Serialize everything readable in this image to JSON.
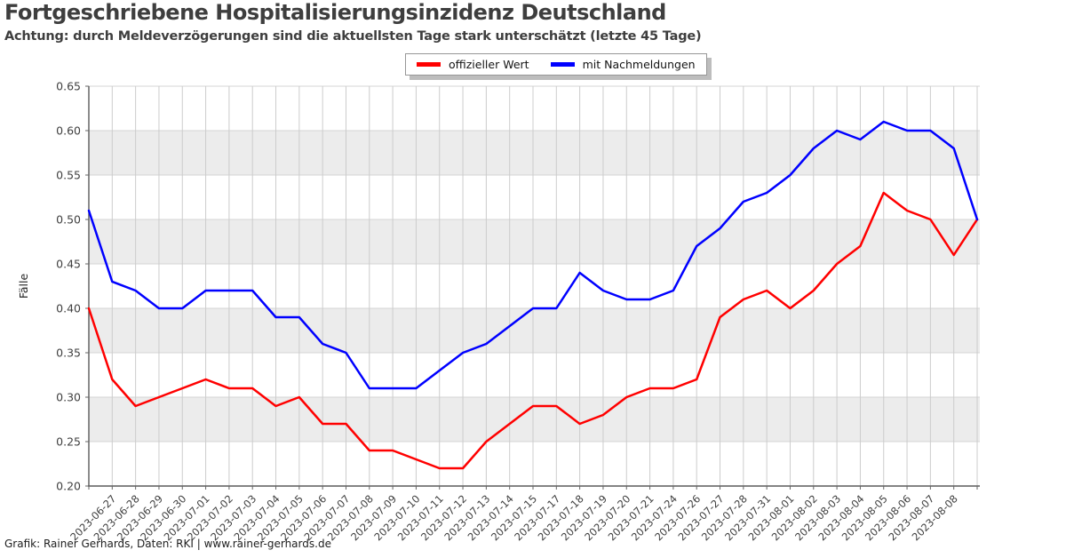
{
  "page": {
    "title": "Fortgeschriebene Hospitalisierungsinzidenz Deutschland",
    "subtitle": "Achtung: durch Meldeverzögerungen sind die aktuellsten Tage stark unterschätzt (letzte 45 Tage)",
    "footer": "Grafik: Rainer Gerhards, Daten: RKI | www.rainer-gerhards.de"
  },
  "legend": {
    "entries": [
      {
        "label": "offizieller Wert",
        "color": "#ff0000"
      },
      {
        "label": "mit Nachmeldungen",
        "color": "#0000ff"
      }
    ]
  },
  "chart_data": {
    "type": "line",
    "title": "Fortgeschriebene Hospitalisierungsinzidenz Deutschland",
    "xlabel": "",
    "ylabel": "Fälle",
    "ylim": [
      0.2,
      0.65
    ],
    "yticks": [
      "0.20",
      "0.25",
      "0.30",
      "0.35",
      "0.40",
      "0.45",
      "0.50",
      "0.55",
      "0.60",
      "0.65"
    ],
    "grid": true,
    "legend_position": "top-center",
    "band_color": "#ececec",
    "bands": [
      [
        0.25,
        0.3
      ],
      [
        0.35,
        0.4
      ],
      [
        0.45,
        0.5
      ],
      [
        0.55,
        0.6
      ]
    ],
    "x_labels": [
      "",
      "2023-06-27",
      "2023-06-28",
      "2023-06-29",
      "2023-06-30",
      "2023-07-01",
      "2023-07-02",
      "2023-07-03",
      "2023-07-04",
      "2023-07-05",
      "2023-07-06",
      "2023-07-07",
      "2023-07-08",
      "2023-07-09",
      "2023-07-10",
      "2023-07-11",
      "2023-07-12",
      "2023-07-13",
      "2023-07-14",
      "2023-07-15",
      "2023-07-17",
      "2023-07-18",
      "2023-07-19",
      "2023-07-20",
      "2023-07-21",
      "2023-07-24",
      "2023-07-26",
      "2023-07-27",
      "2023-07-28",
      "2023-07-31",
      "2023-08-01",
      "2023-08-02",
      "2023-08-03",
      "2023-08-04",
      "2023-08-05",
      "2023-08-06",
      "2023-08-07",
      "2023-08-08",
      ""
    ],
    "series": [
      {
        "name": "offizieller Wert",
        "color": "#ff0000",
        "values": [
          0.4,
          0.32,
          0.29,
          0.3,
          0.31,
          0.32,
          0.31,
          0.31,
          0.29,
          0.3,
          0.27,
          0.27,
          0.24,
          0.24,
          0.23,
          0.22,
          0.22,
          0.25,
          0.27,
          0.29,
          0.29,
          0.27,
          0.28,
          0.3,
          0.31,
          0.31,
          0.32,
          0.39,
          0.41,
          0.42,
          0.4,
          0.42,
          0.45,
          0.47,
          0.53,
          0.51,
          0.5,
          0.46,
          0.5
        ]
      },
      {
        "name": "mit Nachmeldungen",
        "color": "#0000ff",
        "values": [
          0.51,
          0.43,
          0.42,
          0.4,
          0.4,
          0.42,
          0.42,
          0.42,
          0.39,
          0.39,
          0.36,
          0.35,
          0.31,
          0.31,
          0.31,
          0.33,
          0.35,
          0.36,
          0.38,
          0.4,
          0.4,
          0.44,
          0.42,
          0.41,
          0.41,
          0.42,
          0.47,
          0.49,
          0.52,
          0.53,
          0.55,
          0.58,
          0.6,
          0.59,
          0.61,
          0.6,
          0.6,
          0.58,
          0.5
        ]
      }
    ]
  }
}
